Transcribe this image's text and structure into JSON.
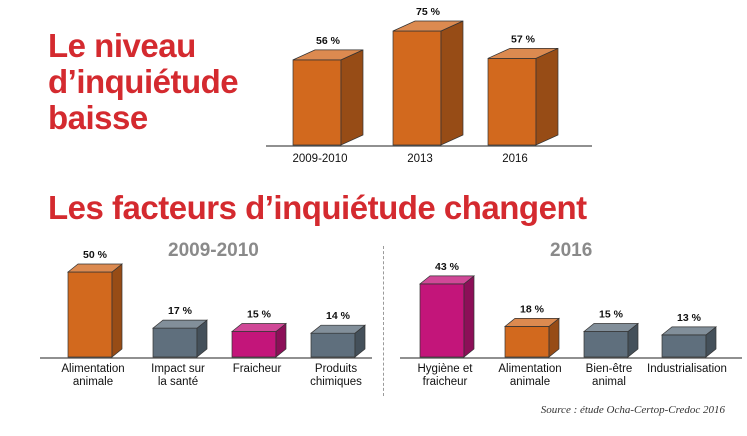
{
  "headline1": [
    "Le niveau",
    "d’inquiétude",
    "baisse"
  ],
  "headline2": "Les facteurs d’inquiétude changent",
  "source": "Source : étude Ocha-Certop-Credoc 2016",
  "colors": {
    "title": "#d42a2f",
    "orange": "#d2691e",
    "slate": "#5f6f7d",
    "magenta": "#c3157a"
  },
  "chart_data": [
    {
      "type": "bar",
      "title": "",
      "categories": [
        "2009-2010",
        "2013",
        "2016"
      ],
      "value_labels": [
        "56 %",
        "75 %",
        "57 %"
      ],
      "values": [
        56,
        75,
        57
      ],
      "colors": [
        "orange",
        "orange",
        "orange"
      ],
      "ylim": [
        0,
        100
      ]
    },
    {
      "type": "bar",
      "title": "2009-2010",
      "categories": [
        [
          "Alimentation",
          "animale"
        ],
        [
          "Impact sur",
          "la santé"
        ],
        [
          "Fraicheur"
        ],
        [
          "Produits",
          "chimiques"
        ]
      ],
      "value_labels": [
        "50 %",
        "17 %",
        "15 %",
        "14 %"
      ],
      "values": [
        50,
        17,
        15,
        14
      ],
      "colors": [
        "orange",
        "slate",
        "magenta",
        "slate"
      ],
      "ylim": [
        0,
        100
      ]
    },
    {
      "type": "bar",
      "title": "2016",
      "categories": [
        [
          "Hygiène et",
          "fraicheur"
        ],
        [
          "Alimentation",
          "animale"
        ],
        [
          "Bien-être",
          "animal"
        ],
        [
          "Industrialisation"
        ]
      ],
      "value_labels": [
        "43 %",
        "18 %",
        "15 %",
        "13 %"
      ],
      "values": [
        43,
        18,
        15,
        13
      ],
      "colors": [
        "magenta",
        "orange",
        "slate",
        "slate"
      ],
      "ylim": [
        0,
        100
      ]
    }
  ]
}
